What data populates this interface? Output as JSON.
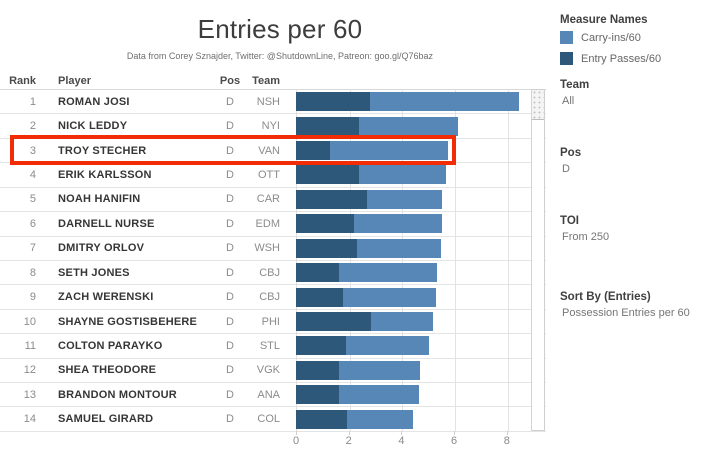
{
  "header": {
    "title": "Entries per 60",
    "subtitle": "Data from Corey Sznajder, Twitter: @ShutdownLine, Patreon: goo.gl/Q76baz"
  },
  "table": {
    "columns": [
      "Rank",
      "Player",
      "Pos",
      "Team"
    ]
  },
  "rows": [
    {
      "rank": "1",
      "player": "ROMAN JOSI",
      "pos": "D",
      "team": "NSH"
    },
    {
      "rank": "2",
      "player": "NICK LEDDY",
      "pos": "D",
      "team": "NYI"
    },
    {
      "rank": "3",
      "player": "TROY STECHER",
      "pos": "D",
      "team": "VAN"
    },
    {
      "rank": "4",
      "player": "ERIK KARLSSON",
      "pos": "D",
      "team": "OTT"
    },
    {
      "rank": "5",
      "player": "NOAH HANIFIN",
      "pos": "D",
      "team": "CAR"
    },
    {
      "rank": "6",
      "player": "DARNELL NURSE",
      "pos": "D",
      "team": "EDM"
    },
    {
      "rank": "7",
      "player": "DMITRY ORLOV",
      "pos": "D",
      "team": "WSH"
    },
    {
      "rank": "8",
      "player": "SETH JONES",
      "pos": "D",
      "team": "CBJ"
    },
    {
      "rank": "9",
      "player": "ZACH WERENSKI",
      "pos": "D",
      "team": "CBJ"
    },
    {
      "rank": "10",
      "player": "SHAYNE GOSTISBEHERE",
      "pos": "D",
      "team": "PHI"
    },
    {
      "rank": "11",
      "player": "COLTON PARAYKO",
      "pos": "D",
      "team": "STL"
    },
    {
      "rank": "12",
      "player": "SHEA THEODORE",
      "pos": "D",
      "team": "VGK"
    },
    {
      "rank": "13",
      "player": "BRANDON MONTOUR",
      "pos": "D",
      "team": "ANA"
    },
    {
      "rank": "14",
      "player": "SAMUEL GIRARD",
      "pos": "D",
      "team": "COL"
    }
  ],
  "chart_data": {
    "type": "bar",
    "orientation": "horizontal",
    "stacked": true,
    "title": "Entries per 60",
    "categories": [
      "ROMAN JOSI",
      "NICK LEDDY",
      "TROY STECHER",
      "ERIK KARLSSON",
      "NOAH HANIFIN",
      "DARNELL NURSE",
      "DMITRY ORLOV",
      "SETH JONES",
      "ZACH WERENSKI",
      "SHAYNE GOSTISBEHERE",
      "COLTON PARAYKO",
      "SHEA THEODORE",
      "BRANDON MONTOUR",
      "SAMUEL GIRARD"
    ],
    "series": [
      {
        "name": "Entry Passes/60",
        "color": "#2e5879",
        "values": [
          2.8,
          2.4,
          1.3,
          2.4,
          2.7,
          2.2,
          2.3,
          1.65,
          1.8,
          2.85,
          1.9,
          1.65,
          1.65,
          1.95
        ]
      },
      {
        "name": "Carry-ins/60",
        "color": "#5687b6",
        "values": [
          5.65,
          3.75,
          4.45,
          3.3,
          2.85,
          3.35,
          3.2,
          3.7,
          3.5,
          2.35,
          3.15,
          3.05,
          3.0,
          2.5
        ]
      }
    ],
    "xlabel": "",
    "ylabel": "",
    "xlim": [
      0,
      8.88
    ],
    "ticks": [
      0,
      2,
      4,
      6,
      8
    ],
    "grid": true,
    "legend_position": "top-right"
  },
  "legend": {
    "title": "Measure Names",
    "items": [
      {
        "label": "Carry-ins/60",
        "color": "#5687b6"
      },
      {
        "label": "Entry Passes/60",
        "color": "#2e5879"
      }
    ]
  },
  "filters": [
    {
      "label": "Team",
      "value": "All"
    },
    {
      "label": "Pos",
      "value": "D"
    },
    {
      "label": "TOI",
      "value": "From 250"
    },
    {
      "label": "Sort By (Entries)",
      "value": "Possession Entries per 60"
    }
  ],
  "highlight": {
    "rank": "3",
    "color": "#f22c06"
  }
}
